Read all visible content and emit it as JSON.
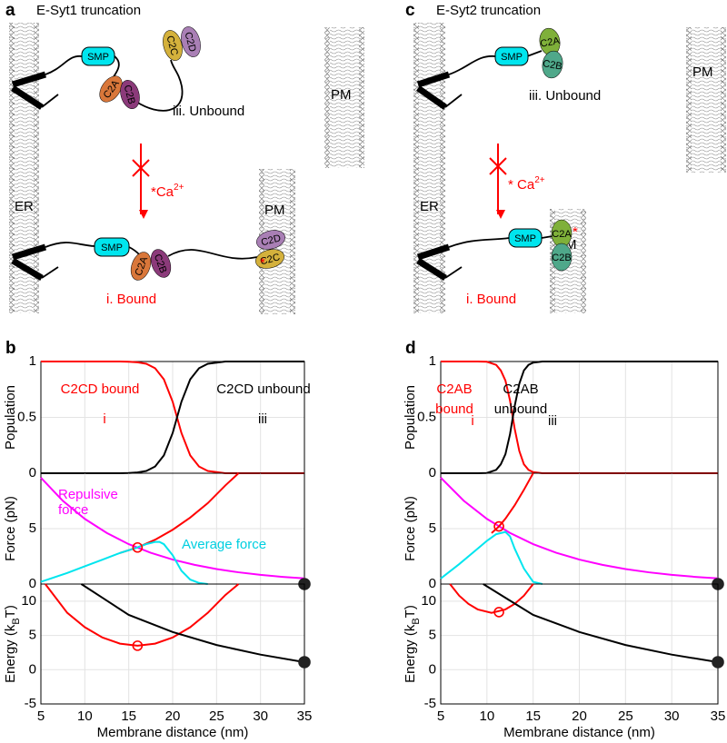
{
  "panels": {
    "a": {
      "letter": "a",
      "title": "E-Syt1 truncation",
      "er": "ER",
      "pm_top": "PM",
      "pm_bottom": "PM",
      "unbound": {
        "label": "iii. Unbound",
        "smp": "SMP",
        "c2a": "C2A",
        "c2b": "C2B",
        "c2c": "C2C",
        "c2d": "C2D"
      },
      "bound": {
        "label": "i. Bound",
        "smp": "SMP",
        "c2a": "C2A",
        "c2b": "C2B",
        "c2c": "C2C",
        "c2d": "C2D",
        "star": "*"
      },
      "ca": "*Ca",
      "ca_sup": "2+"
    },
    "b": {
      "letter": "b"
    },
    "c": {
      "letter": "c",
      "title": "E-Syt2 truncation",
      "er": "ER",
      "pm_top": "PM",
      "pm_bottom": "PM",
      "unbound": {
        "label": "iii. Unbound",
        "smp": "SMP",
        "c2a": "C2A",
        "c2b": "C2B"
      },
      "bound": {
        "label": "i. Bound",
        "smp": "SMP",
        "c2a": "C2A",
        "c2b": "C2B",
        "star": "*"
      },
      "ca": "* Ca",
      "ca_sup": "2+"
    },
    "d": {
      "letter": "d"
    }
  },
  "chart_data": [
    {
      "type": "line",
      "ylabel": "Population",
      "xlim": [
        5,
        35
      ],
      "ylim": [
        0,
        1
      ],
      "yticks": [
        0,
        0.5,
        1
      ],
      "xticks": [
        5,
        10,
        15,
        20,
        25,
        30,
        35
      ],
      "grid": true,
      "series": [
        {
          "color": "#ff0000",
          "x": [
            5,
            10,
            14,
            15,
            16,
            17,
            18,
            19,
            20,
            20.5,
            21,
            22,
            23,
            24,
            25,
            26,
            30,
            35
          ],
          "values": [
            1,
            1,
            1,
            0.998,
            0.993,
            0.98,
            0.94,
            0.84,
            0.64,
            0.5,
            0.36,
            0.16,
            0.06,
            0.02,
            0.01,
            0,
            0,
            0
          ]
        },
        {
          "color": "#000000",
          "x": [
            5,
            10,
            14,
            15,
            16,
            17,
            18,
            19,
            20,
            20.5,
            21,
            22,
            23,
            24,
            25,
            26,
            30,
            35
          ],
          "values": [
            0,
            0,
            0,
            0.002,
            0.007,
            0.02,
            0.06,
            0.16,
            0.36,
            0.5,
            0.64,
            0.84,
            0.94,
            0.98,
            0.99,
            1,
            1,
            1
          ]
        }
      ],
      "annotations": [
        {
          "lines": [
            "C2CD bound"
          ],
          "color": "#ff0000"
        },
        {
          "lines": [
            "i"
          ],
          "color": "#ff0000"
        },
        {
          "lines": [
            "C2CD unbound"
          ],
          "color": "#000000"
        },
        {
          "lines": [
            "iii"
          ],
          "color": "#000000"
        }
      ]
    },
    {
      "type": "line",
      "ylabel": "Force (pN)",
      "xlim": [
        5,
        35
      ],
      "ylim": [
        0,
        10
      ],
      "yticks": [
        0,
        5
      ],
      "xticks": [
        5,
        10,
        15,
        20,
        25,
        30,
        35
      ],
      "grid": true,
      "series": [
        {
          "color": "#ff00ff",
          "x": [
            5,
            7.5,
            10,
            12.5,
            15,
            17.5,
            20,
            22.5,
            25,
            27.5,
            30,
            32.5,
            35
          ],
          "values": [
            9.6,
            7.51,
            5.88,
            4.61,
            3.6,
            2.82,
            2.21,
            1.73,
            1.35,
            1.06,
            0.83,
            0.65,
            0.51
          ]
        },
        {
          "color": "#ff0000",
          "x": [
            14,
            16,
            18,
            20,
            22,
            24,
            26,
            27.5
          ],
          "values": [
            2.8,
            3.3,
            4.0,
            4.9,
            6.0,
            7.3,
            8.9,
            10
          ]
        },
        {
          "color": "#00e5ee",
          "x": [
            5,
            8,
            10,
            12,
            14,
            16,
            17,
            18,
            18.5,
            19,
            20,
            21,
            22,
            23,
            24
          ],
          "values": [
            0.2,
            1.0,
            1.6,
            2.2,
            2.8,
            3.3,
            3.6,
            3.8,
            3.8,
            3.6,
            2.6,
            1.2,
            0.4,
            0.1,
            0
          ]
        }
      ],
      "markers": [
        {
          "x": 16,
          "y": 3.3,
          "style": "open",
          "color": "#ff0000"
        },
        {
          "x": 35,
          "y": 0,
          "style": "filled",
          "color": "#222222"
        }
      ],
      "annotations": [
        {
          "lines": [
            "Repulsive",
            "force"
          ],
          "color": "#ff00ff"
        },
        {
          "lines": [
            "Average force"
          ],
          "color": "#00cfe0"
        }
      ]
    },
    {
      "type": "line",
      "ylabel_parts": [
        "Energy (k",
        "B",
        "T)"
      ],
      "xlabel": "Membrane distance (nm)",
      "xlim": [
        5,
        35
      ],
      "ylim": [
        -5,
        12.5
      ],
      "yticks": [
        -5,
        0,
        5,
        10
      ],
      "xticks": [
        5,
        10,
        15,
        20,
        25,
        30,
        35
      ],
      "grid": true,
      "series": [
        {
          "color": "#ff0000",
          "x": [
            5.5,
            8,
            10,
            12,
            14,
            16,
            18,
            20,
            22,
            24,
            26,
            27.5
          ],
          "values": [
            12.5,
            8.3,
            6.2,
            4.7,
            3.8,
            3.5,
            3.8,
            4.7,
            6.2,
            8.3,
            10.9,
            12.5
          ]
        },
        {
          "color": "#000000",
          "x": [
            9.6,
            12,
            15,
            20,
            25,
            30,
            35
          ],
          "values": [
            12.5,
            10.5,
            8,
            5.5,
            3.6,
            2.2,
            1.1
          ]
        }
      ],
      "markers": [
        {
          "x": 16,
          "y": 3.5,
          "style": "open",
          "color": "#ff0000"
        },
        {
          "x": 35,
          "y": 1.1,
          "style": "filled",
          "color": "#222222"
        }
      ]
    },
    {
      "type": "line",
      "ylabel": "Population",
      "xlim": [
        5,
        35
      ],
      "ylim": [
        0,
        1
      ],
      "yticks": [
        0,
        0.5,
        1
      ],
      "xticks": [
        5,
        10,
        15,
        20,
        25,
        30,
        35
      ],
      "grid": true,
      "series": [
        {
          "color": "#ff0000",
          "x": [
            5,
            9,
            10,
            11,
            11.5,
            12,
            12.5,
            13,
            13.5,
            14,
            14.5,
            15,
            16,
            20,
            35
          ],
          "values": [
            1,
            1,
            0.998,
            0.97,
            0.92,
            0.83,
            0.65,
            0.4,
            0.2,
            0.08,
            0.03,
            0.01,
            0,
            0,
            0
          ]
        },
        {
          "color": "#000000",
          "x": [
            5,
            9,
            10,
            11,
            11.5,
            12,
            12.5,
            13,
            13.5,
            14,
            14.5,
            15,
            16,
            20,
            35
          ],
          "values": [
            0,
            0,
            0.002,
            0.03,
            0.08,
            0.17,
            0.35,
            0.6,
            0.8,
            0.92,
            0.97,
            0.99,
            1,
            1,
            1
          ]
        }
      ],
      "annotations": [
        {
          "lines": [
            "C2AB",
            "bound"
          ],
          "color": "#ff0000"
        },
        {
          "lines": [
            "i"
          ],
          "color": "#ff0000"
        },
        {
          "lines": [
            "C2AB",
            "unbound"
          ],
          "color": "#000000"
        },
        {
          "lines": [
            "iii"
          ],
          "color": "#000000"
        }
      ]
    },
    {
      "type": "line",
      "ylabel": "Force (pN)",
      "xlim": [
        5,
        35
      ],
      "ylim": [
        0,
        10
      ],
      "yticks": [
        0,
        5
      ],
      "xticks": [
        5,
        10,
        15,
        20,
        25,
        30,
        35
      ],
      "grid": true,
      "series": [
        {
          "color": "#ff00ff",
          "x": [
            5,
            7.5,
            10,
            12.5,
            15,
            17.5,
            20,
            22.5,
            25,
            27.5,
            30,
            32.5,
            35
          ],
          "values": [
            9.6,
            7.51,
            5.88,
            4.61,
            3.6,
            2.82,
            2.21,
            1.73,
            1.35,
            1.06,
            0.83,
            0.65,
            0.51
          ]
        },
        {
          "color": "#ff0000",
          "x": [
            10.5,
            11.3,
            12,
            13,
            14,
            15
          ],
          "values": [
            4.6,
            5.2,
            5.9,
            7.1,
            8.5,
            10
          ]
        },
        {
          "color": "#00e5ee",
          "x": [
            5,
            7,
            9,
            10,
            11,
            12,
            12.5,
            13,
            14,
            15,
            16
          ],
          "values": [
            0.5,
            1.8,
            3.2,
            3.9,
            4.5,
            4.7,
            4.3,
            3.2,
            1.4,
            0.2,
            0
          ]
        }
      ],
      "markers": [
        {
          "x": 11.3,
          "y": 5.2,
          "style": "open",
          "color": "#ff0000"
        },
        {
          "x": 35,
          "y": 0,
          "style": "filled",
          "color": "#222222"
        }
      ]
    },
    {
      "type": "line",
      "ylabel_parts": [
        "Energy (k",
        "B",
        "T)"
      ],
      "xlabel": "Membrane distance (nm)",
      "xlim": [
        5,
        35
      ],
      "ylim": [
        -5,
        12.5
      ],
      "yticks": [
        -5,
        0,
        5,
        10
      ],
      "xticks": [
        5,
        10,
        15,
        20,
        25,
        30,
        35
      ],
      "grid": true,
      "series": [
        {
          "color": "#ff0000",
          "x": [
            6,
            7,
            8,
            9,
            10.5,
            12,
            13,
            14,
            15
          ],
          "values": [
            12.5,
            10.8,
            9.6,
            8.8,
            8.3,
            8.8,
            9.6,
            10.8,
            12.5
          ]
        },
        {
          "color": "#000000",
          "x": [
            9.6,
            12,
            15,
            20,
            25,
            30,
            35
          ],
          "values": [
            12.5,
            10.5,
            8,
            5.5,
            3.6,
            2.2,
            1.1
          ]
        }
      ],
      "markers": [
        {
          "x": 11.3,
          "y": 8.4,
          "style": "open",
          "color": "#ff0000"
        },
        {
          "x": 35,
          "y": 1.1,
          "style": "filled",
          "color": "#222222"
        }
      ]
    }
  ]
}
